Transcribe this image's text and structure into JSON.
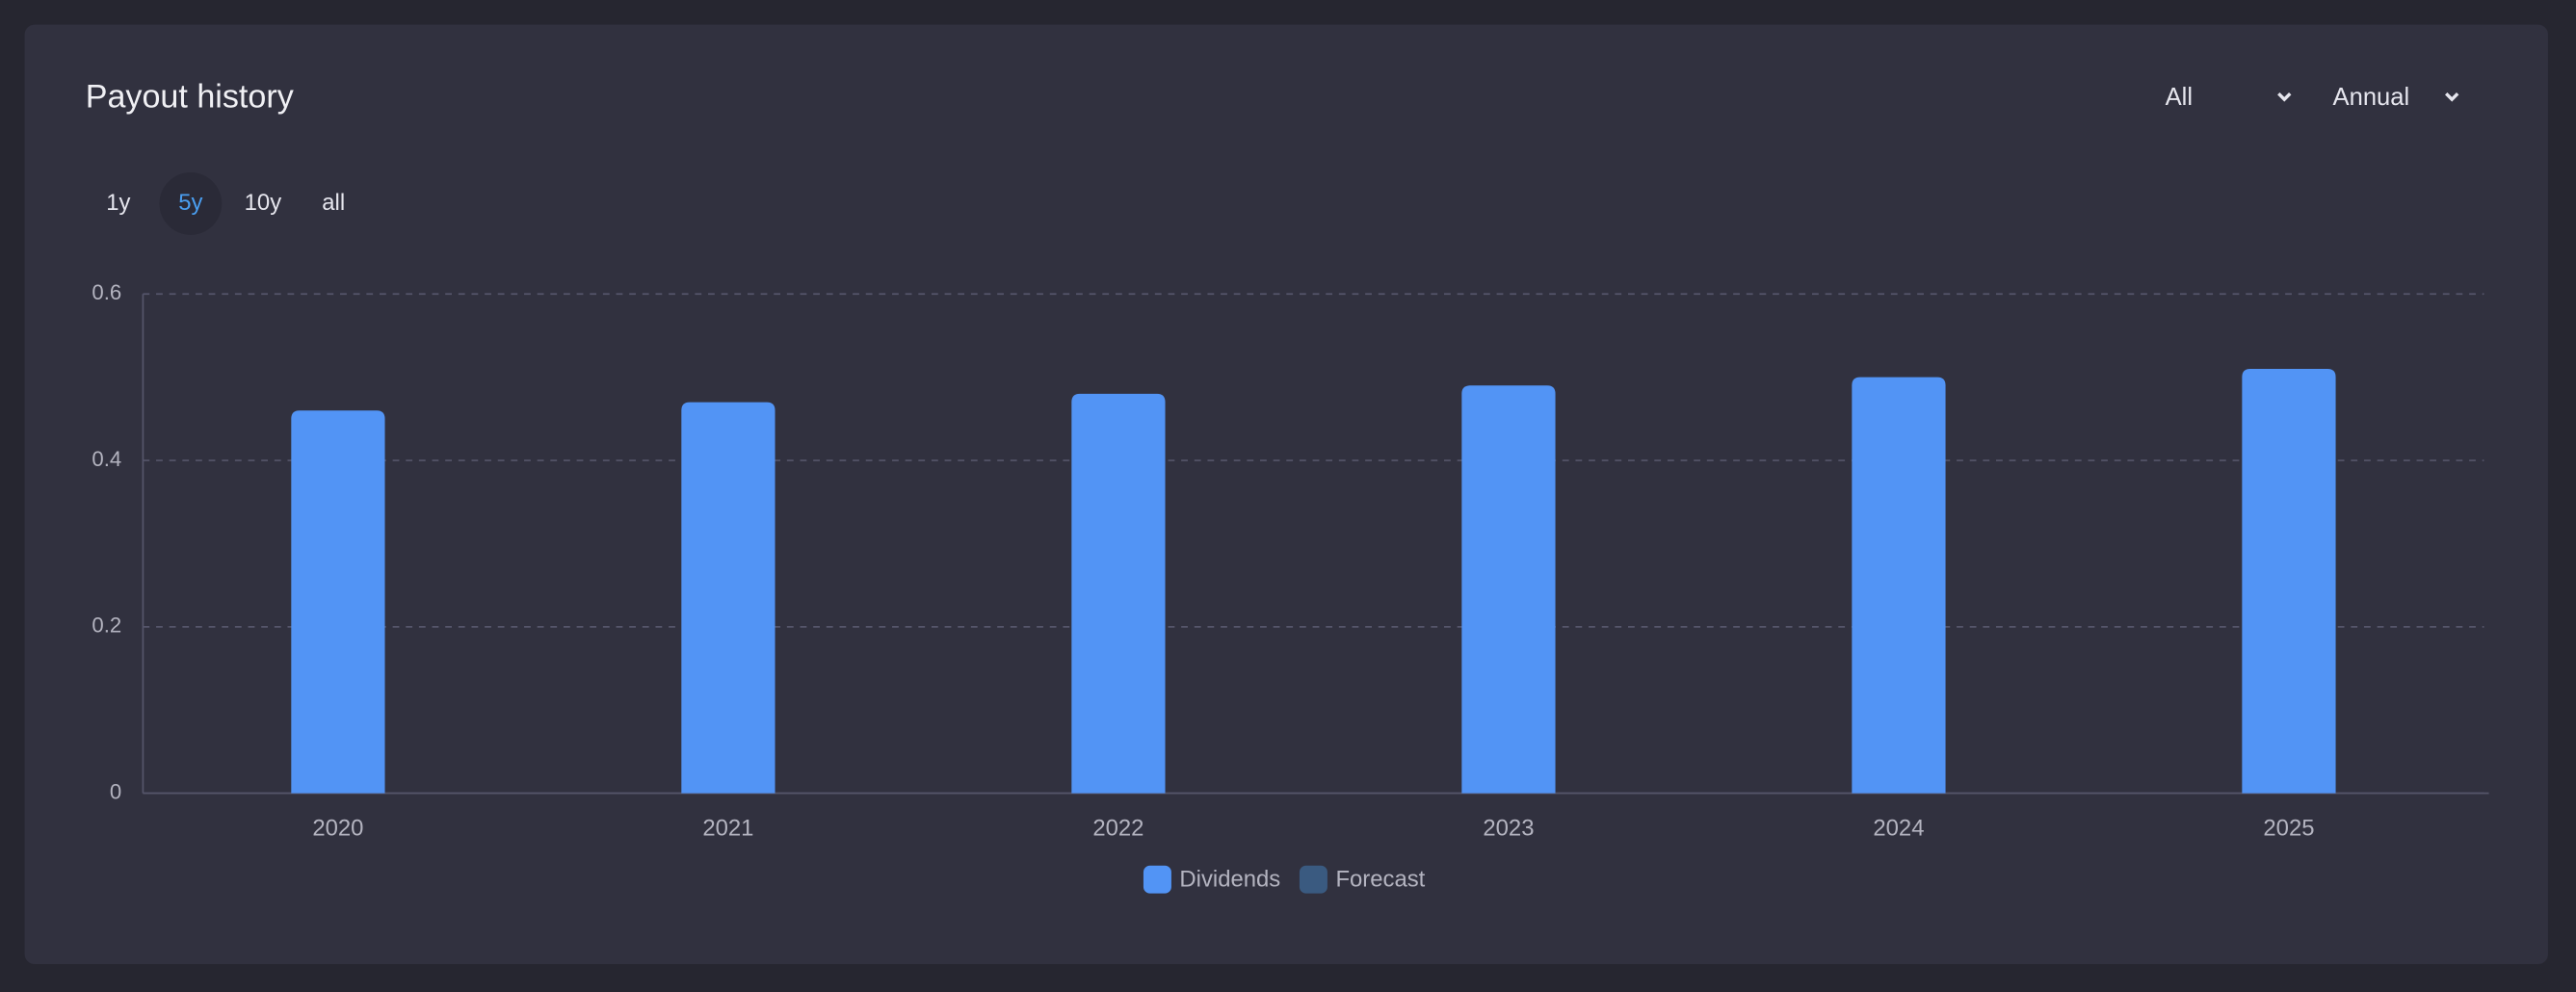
{
  "chart_data": {
    "type": "bar",
    "title": "Payout history",
    "filters": [
      "All",
      "Annual"
    ],
    "ranges": [
      "1y",
      "5y",
      "10y",
      "all"
    ],
    "categories": [
      "2020",
      "2021",
      "2022",
      "2023",
      "2024",
      "2025"
    ],
    "series": [
      {
        "name": "Dividends",
        "color": "#5294f5",
        "values": [
          0.46,
          0.47,
          0.48,
          0.49,
          0.5,
          0.51
        ]
      },
      {
        "name": "Forecast",
        "color": "#3a5a80",
        "values": [
          null,
          null,
          null,
          null,
          null,
          null
        ]
      }
    ],
    "ylim": [
      0,
      0.6
    ],
    "yticks": [
      0,
      0.2,
      0.4,
      0.6
    ],
    "grid": true
  }
}
